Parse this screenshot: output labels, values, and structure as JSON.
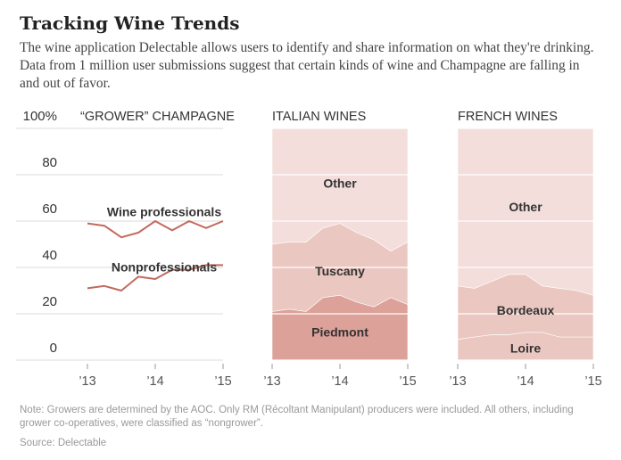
{
  "title": "Tracking Wine Trends",
  "subtitle": "The wine application Delectable allows users to identify and share information on what they're drinking. Data from 1 million user submissions suggest that certain kinds of wine and Champagne are falling in and out of favor.",
  "note": "Note: Growers are determined by the AOC. Only RM (Récoltant Manipulant) producers were included. All others, including grower co-operatives, were classified as “nongrower”.",
  "source": "Source: Delectable",
  "colors": {
    "line": "#c26a5e",
    "other": "#f3dedb",
    "middle": "#ebc7c1",
    "bottom": "#dca198",
    "grid": "#e2e2e2",
    "text": "#333333",
    "tick": "#555555"
  },
  "chart_data": [
    {
      "type": "line",
      "title": "“GROWER” CHAMPAGNE",
      "x": [
        2013.0,
        2013.25,
        2013.5,
        2013.75,
        2014.0,
        2014.25,
        2014.5,
        2014.75,
        2015.0
      ],
      "x_tick_labels": [
        "’13",
        "’14",
        "’15"
      ],
      "y_tick_labels": [
        "100%",
        "80",
        "60",
        "40",
        "20",
        "0"
      ],
      "ylim": [
        0,
        100
      ],
      "series": [
        {
          "name": "Wine professionals",
          "values": [
            59,
            58,
            53,
            55,
            60,
            56,
            60,
            57,
            60
          ]
        },
        {
          "name": "Nonprofessionals",
          "values": [
            31,
            32,
            30,
            36,
            35,
            39,
            39,
            41,
            41
          ]
        }
      ]
    },
    {
      "type": "area",
      "stacked": true,
      "title": "ITALIAN WINES",
      "x": [
        2013.0,
        2013.25,
        2013.5,
        2013.75,
        2014.0,
        2014.25,
        2014.5,
        2014.75,
        2015.0
      ],
      "x_tick_labels": [
        "’13",
        "’14",
        "’15"
      ],
      "ylim": [
        0,
        100
      ],
      "series": [
        {
          "name": "Piedmont",
          "values": [
            21,
            22,
            21,
            27,
            28,
            25,
            23,
            27,
            24
          ]
        },
        {
          "name": "Tuscany",
          "values": [
            29,
            29,
            30,
            30,
            31,
            30,
            29,
            20,
            27
          ]
        },
        {
          "name": "Other",
          "values": [
            50,
            49,
            49,
            43,
            41,
            45,
            48,
            53,
            49
          ]
        }
      ]
    },
    {
      "type": "area",
      "stacked": true,
      "title": "FRENCH WINES",
      "x": [
        2013.0,
        2013.25,
        2013.5,
        2013.75,
        2014.0,
        2014.25,
        2014.5,
        2014.75,
        2015.0
      ],
      "x_tick_labels": [
        "’13",
        "’14",
        "’15"
      ],
      "ylim": [
        0,
        100
      ],
      "series": [
        {
          "name": "Loire",
          "values": [
            9,
            10,
            11,
            11,
            12,
            12,
            10,
            10,
            10
          ]
        },
        {
          "name": "Bordeaux",
          "values": [
            23,
            21,
            23,
            26,
            25,
            20,
            21,
            20,
            18
          ]
        },
        {
          "name": "Other",
          "values": [
            68,
            69,
            66,
            63,
            63,
            68,
            69,
            70,
            72
          ]
        }
      ]
    }
  ]
}
